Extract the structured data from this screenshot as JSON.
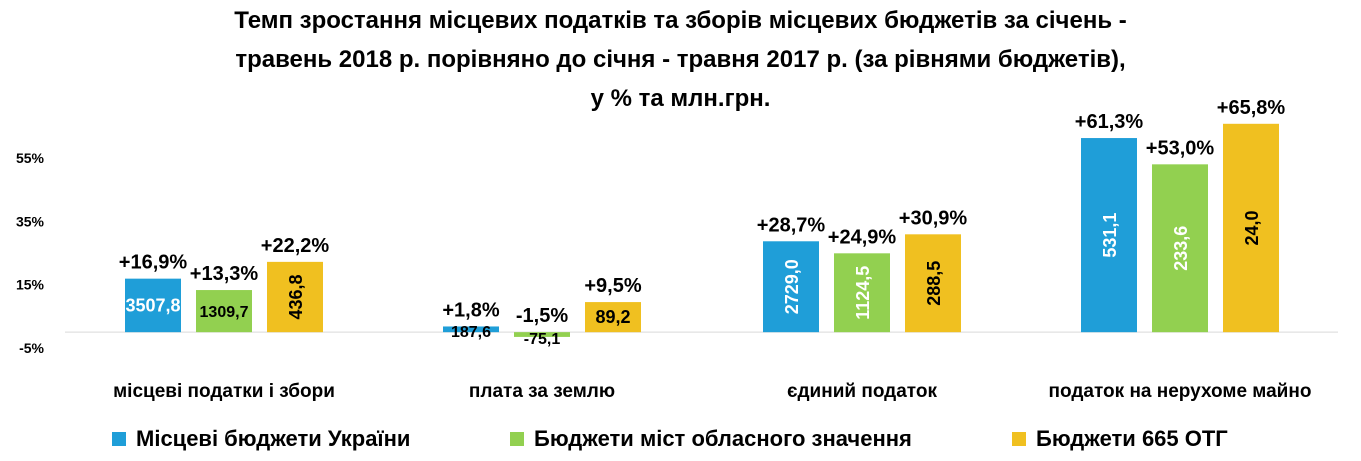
{
  "title_lines": [
    "Темп зростання місцевих податків та зборів місцевих бюджетів за січень -",
    "травень 2018 р. порівняно до січня - травня  2017 р. (за рівнями бюджетів),",
    "у % та млн.грн."
  ],
  "colors": {
    "series_0": "#1f9ed8",
    "series_1": "#92d050",
    "series_2": "#f0c020"
  },
  "chart_data": {
    "type": "bar",
    "title": "Темп зростання місцевих податків та зборів місцевих бюджетів за січень - травень 2018 р. порівняно до січня - травня  2017 р. (за рівнями бюджетів), у % та млн.грн.",
    "categories": [
      "місцеві податки і збори",
      "плата за землю",
      "єдиний податок",
      "податок на нерухоме майно"
    ],
    "ylim": [
      -5,
      65
    ],
    "ytick_labels": [
      "-5%",
      "15%",
      "35%",
      "55%"
    ],
    "yticks": [
      -5,
      15,
      35,
      55
    ],
    "grid": false,
    "legend_position": "bottom",
    "series": [
      {
        "name": "Місцеві бюджети України",
        "values": [
          16.9,
          1.8,
          28.7,
          61.3
        ],
        "pct_labels": [
          "+16,9%",
          "+1,8%",
          "+28,7%",
          "+61,3%"
        ],
        "amount_labels": [
          "3507,8",
          "187,6",
          "2729,0",
          "531,1"
        ]
      },
      {
        "name": "Бюджети міст обласного значення",
        "values": [
          13.3,
          -1.5,
          24.9,
          53.0
        ],
        "pct_labels": [
          "+13,3%",
          "-1,5%",
          "+24,9%",
          "+53,0%"
        ],
        "amount_labels": [
          "1309,7",
          "-75,1",
          "1124,5",
          "233,6"
        ]
      },
      {
        "name": "Бюджети 665 ОТГ",
        "values": [
          22.2,
          9.5,
          30.9,
          65.8
        ],
        "pct_labels": [
          "+22,2%",
          "+9,5%",
          "+30,9%",
          "+65,8%"
        ],
        "amount_labels": [
          "436,8",
          "89,2",
          "288,5",
          "24,0"
        ]
      }
    ]
  }
}
